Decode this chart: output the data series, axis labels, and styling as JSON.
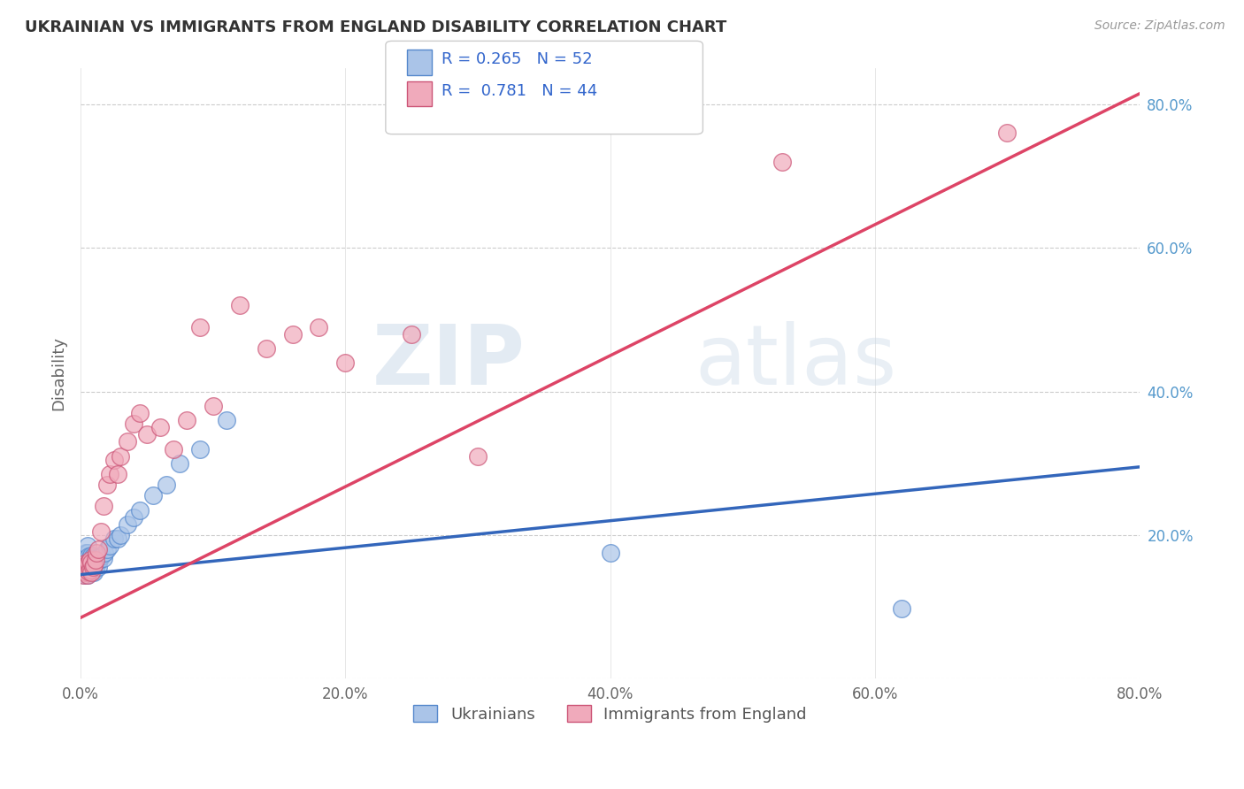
{
  "title": "UKRAINIAN VS IMMIGRANTS FROM ENGLAND DISABILITY CORRELATION CHART",
  "source": "Source: ZipAtlas.com",
  "ylabel": "Disability",
  "watermark_zip": "ZIP",
  "watermark_atlas": "atlas",
  "xlim": [
    0.0,
    0.8
  ],
  "ylim": [
    0.0,
    0.85
  ],
  "xticks": [
    0.0,
    0.2,
    0.4,
    0.6,
    0.8
  ],
  "yticks": [
    0.0,
    0.2,
    0.4,
    0.6,
    0.8
  ],
  "ytick_labels": [
    "",
    "20.0%",
    "40.0%",
    "60.0%",
    "80.0%"
  ],
  "xtick_labels": [
    "0.0%",
    "20.0%",
    "40.0%",
    "60.0%",
    "80.0%"
  ],
  "series1_color": "#aac4e8",
  "series1_edge": "#5588cc",
  "series2_color": "#f0aabb",
  "series2_edge": "#cc5577",
  "line1_color": "#3366bb",
  "line2_color": "#dd4466",
  "R1": 0.265,
  "N1": 52,
  "R2": 0.781,
  "N2": 44,
  "legend_label1": "Ukrainians",
  "legend_label2": "Immigrants from England",
  "blue_line_y0": 0.145,
  "blue_line_y1": 0.295,
  "pink_line_y0": 0.085,
  "pink_line_y1": 0.815,
  "series1_x": [
    0.002,
    0.003,
    0.003,
    0.004,
    0.004,
    0.004,
    0.005,
    0.005,
    0.005,
    0.005,
    0.005,
    0.006,
    0.006,
    0.006,
    0.007,
    0.007,
    0.007,
    0.008,
    0.008,
    0.008,
    0.009,
    0.009,
    0.009,
    0.01,
    0.01,
    0.01,
    0.011,
    0.011,
    0.012,
    0.012,
    0.013,
    0.013,
    0.014,
    0.015,
    0.016,
    0.017,
    0.018,
    0.02,
    0.022,
    0.025,
    0.028,
    0.03,
    0.035,
    0.04,
    0.045,
    0.055,
    0.065,
    0.075,
    0.09,
    0.11,
    0.62,
    0.4
  ],
  "series1_y": [
    0.155,
    0.145,
    0.16,
    0.15,
    0.165,
    0.175,
    0.145,
    0.155,
    0.165,
    0.175,
    0.185,
    0.15,
    0.16,
    0.17,
    0.148,
    0.158,
    0.168,
    0.152,
    0.162,
    0.172,
    0.15,
    0.16,
    0.17,
    0.148,
    0.158,
    0.168,
    0.155,
    0.165,
    0.158,
    0.168,
    0.155,
    0.168,
    0.165,
    0.17,
    0.172,
    0.168,
    0.175,
    0.18,
    0.185,
    0.195,
    0.195,
    0.2,
    0.215,
    0.225,
    0.235,
    0.255,
    0.27,
    0.3,
    0.32,
    0.36,
    0.098,
    0.175
  ],
  "series2_x": [
    0.002,
    0.002,
    0.003,
    0.003,
    0.004,
    0.004,
    0.005,
    0.005,
    0.006,
    0.006,
    0.007,
    0.007,
    0.008,
    0.008,
    0.009,
    0.01,
    0.011,
    0.012,
    0.013,
    0.015,
    0.017,
    0.02,
    0.022,
    0.025,
    0.028,
    0.03,
    0.035,
    0.04,
    0.045,
    0.05,
    0.06,
    0.07,
    0.08,
    0.09,
    0.1,
    0.12,
    0.14,
    0.16,
    0.18,
    0.2,
    0.25,
    0.3,
    0.53,
    0.7
  ],
  "series2_y": [
    0.145,
    0.155,
    0.15,
    0.16,
    0.148,
    0.158,
    0.145,
    0.158,
    0.15,
    0.162,
    0.152,
    0.165,
    0.148,
    0.162,
    0.155,
    0.158,
    0.165,
    0.175,
    0.18,
    0.205,
    0.24,
    0.27,
    0.285,
    0.305,
    0.285,
    0.31,
    0.33,
    0.355,
    0.37,
    0.34,
    0.35,
    0.32,
    0.36,
    0.49,
    0.38,
    0.52,
    0.46,
    0.48,
    0.49,
    0.44,
    0.48,
    0.31,
    0.72,
    0.76
  ]
}
